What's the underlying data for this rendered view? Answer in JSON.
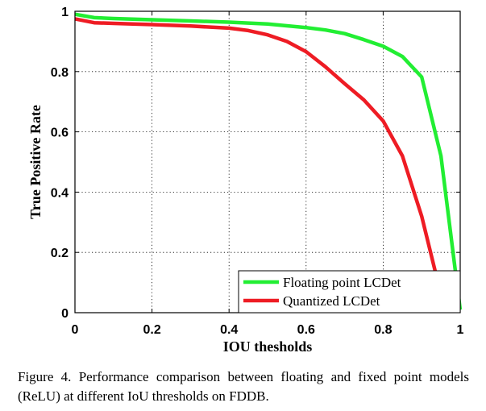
{
  "chart_data": {
    "type": "line",
    "title": "",
    "xlabel": "IOU thesholds",
    "ylabel": "True Positive Rate",
    "xlim": [
      0,
      1
    ],
    "ylim": [
      0,
      1
    ],
    "x_ticks": [
      "0",
      "0.2",
      "0.4",
      "0.6",
      "0.8",
      "1"
    ],
    "y_ticks": [
      "0",
      "0.2",
      "0.4",
      "0.6",
      "0.8",
      "1"
    ],
    "grid": true,
    "legend_position": "bottom-right",
    "series": [
      {
        "name": "Floating point LCDet",
        "color": "#22ee33",
        "x": [
          0,
          0.05,
          0.1,
          0.2,
          0.3,
          0.4,
          0.5,
          0.6,
          0.65,
          0.7,
          0.75,
          0.8,
          0.85,
          0.9,
          0.95,
          1.0
        ],
        "y": [
          0.99,
          0.979,
          0.976,
          0.972,
          0.968,
          0.964,
          0.958,
          0.946,
          0.938,
          0.926,
          0.906,
          0.884,
          0.85,
          0.782,
          0.52,
          0.01
        ]
      },
      {
        "name": "Quantized LCDet",
        "color": "#ee1c24",
        "x": [
          0,
          0.05,
          0.1,
          0.2,
          0.3,
          0.4,
          0.45,
          0.5,
          0.55,
          0.6,
          0.65,
          0.7,
          0.75,
          0.8,
          0.85,
          0.9,
          0.95
        ],
        "y": [
          0.975,
          0.962,
          0.96,
          0.956,
          0.951,
          0.944,
          0.936,
          0.922,
          0.9,
          0.866,
          0.816,
          0.76,
          0.706,
          0.636,
          0.52,
          0.32,
          0.06
        ]
      }
    ]
  },
  "caption": "Figure 4. Performance comparison between floating and fixed point models (ReLU) at different IoU thresholds on FDDB."
}
